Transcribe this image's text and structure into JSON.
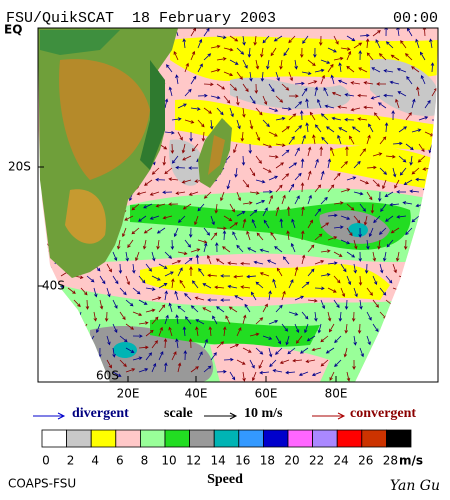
{
  "header": {
    "title": "FSU/QuikSCAT  18 February 2003",
    "time": "00:00"
  },
  "map": {
    "lat_labels": [
      "EQ",
      "20S",
      "40S",
      "60S"
    ],
    "lon_labels": [
      "20E",
      "40E",
      "60E",
      "80E"
    ]
  },
  "legend": {
    "divergent": "divergent",
    "scale": "scale",
    "scale_value": "10 m/s",
    "convergent": "convergent"
  },
  "colorbar": {
    "ticks": [
      0,
      2,
      4,
      6,
      8,
      10,
      12,
      14,
      16,
      18,
      20,
      22,
      24,
      26,
      28
    ],
    "unit": "m/s",
    "colors": [
      "#ffffff",
      "#c8c8c8",
      "#ffff00",
      "#ffc8c8",
      "#99ff99",
      "#22dd22",
      "#999999",
      "#00b4b4",
      "#3399ff",
      "#0000cc",
      "#ff66ff",
      "#aa88ff",
      "#ff0000",
      "#cc3300",
      "#000000"
    ]
  },
  "footer": {
    "left": "COAPS-FSU",
    "center": "Speed",
    "signature": "Yan Gu"
  }
}
